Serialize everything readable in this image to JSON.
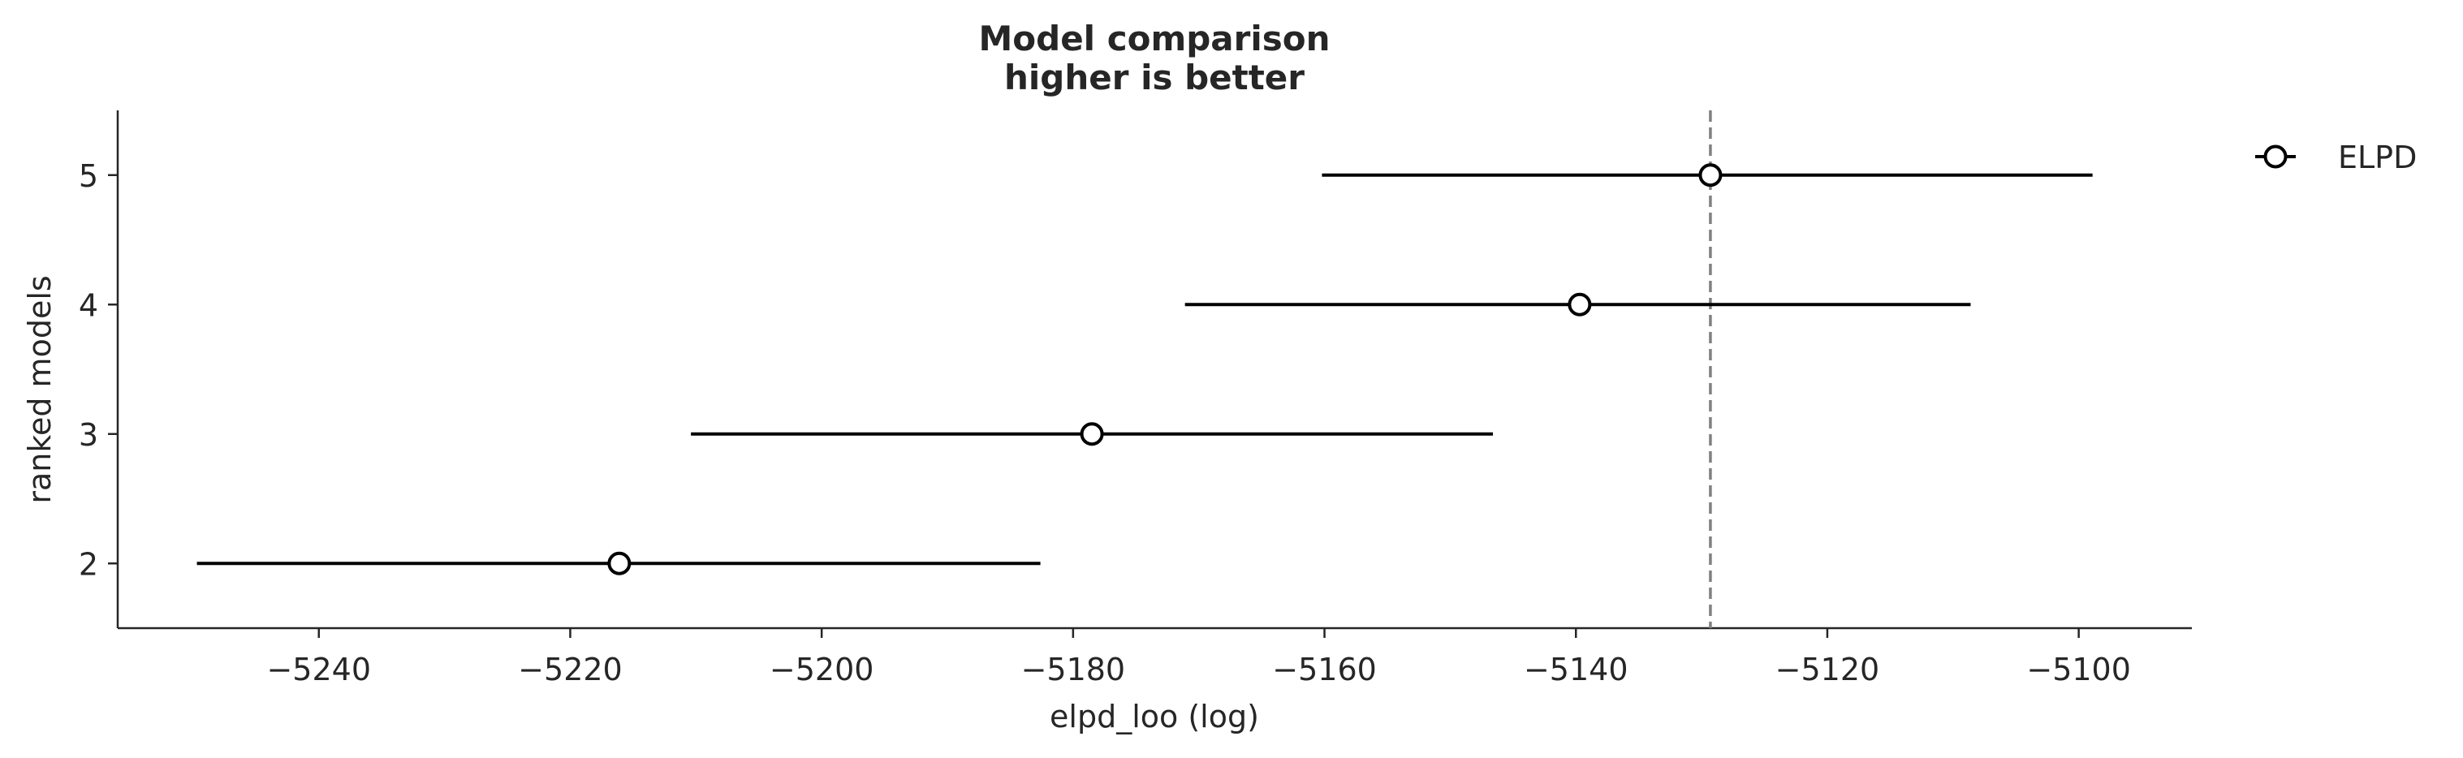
{
  "chart_data": {
    "type": "scatter",
    "title": "Model comparison",
    "subtitle": "higher is better",
    "xlabel": "elpd_loo (log)",
    "ylabel": "ranked models",
    "xlim": [
      -5256,
      -5091
    ],
    "ylim": [
      1.5,
      5.5
    ],
    "x_ticks": [
      -5240,
      -5220,
      -5200,
      -5180,
      -5160,
      -5140,
      -5120,
      -5100
    ],
    "x_tick_labels": [
      "−5240",
      "−5220",
      "−5200",
      "−5180",
      "−5160",
      "−5140",
      "−5120",
      "−5100"
    ],
    "y_ticks": [
      2,
      3,
      4,
      5
    ],
    "y_tick_labels": [
      "2",
      "3",
      "4",
      "5"
    ],
    "series": [
      {
        "name": "ELPD",
        "points": [
          {
            "model": 5,
            "elpd": -5129.3,
            "lower": -5160.2,
            "upper": -5098.9
          },
          {
            "model": 4,
            "elpd": -5139.7,
            "lower": -5171.1,
            "upper": -5108.6
          },
          {
            "model": 3,
            "elpd": -5178.5,
            "lower": -5210.4,
            "upper": -5146.6
          },
          {
            "model": 2,
            "elpd": -5216.1,
            "lower": -5249.7,
            "upper": -5182.6
          }
        ]
      }
    ],
    "reference_line": {
      "x": -5129.3,
      "style": "dashed",
      "color": "#808080"
    },
    "grid": false,
    "legend": {
      "placement": "top-right",
      "entries": [
        "ELPD"
      ]
    },
    "colors": {
      "line": "#000000",
      "marker_fill": "#ffffff",
      "axis": "#262626"
    }
  }
}
